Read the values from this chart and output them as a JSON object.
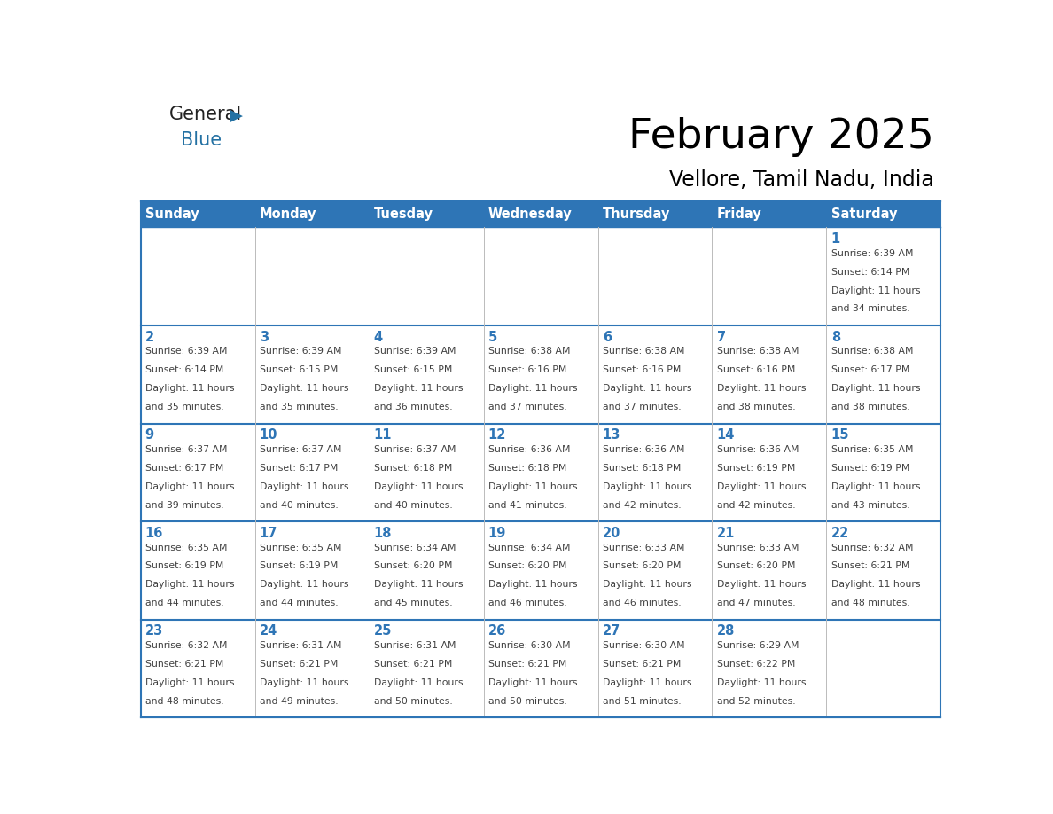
{
  "title": "February 2025",
  "subtitle": "Vellore, Tamil Nadu, India",
  "days_of_week": [
    "Sunday",
    "Monday",
    "Tuesday",
    "Wednesday",
    "Thursday",
    "Friday",
    "Saturday"
  ],
  "header_bg": "#2E75B6",
  "header_text": "#FFFFFF",
  "cell_bg": "#FFFFFF",
  "border_color": "#2E75B6",
  "row_border_color": "#2E75B6",
  "col_border_color": "#CCCCCC",
  "title_color": "#000000",
  "day_num_color": "#2E75B6",
  "info_color": "#404040",
  "calendar_data": [
    [
      null,
      null,
      null,
      null,
      null,
      null,
      {
        "day": 1,
        "sunrise": "6:39 AM",
        "sunset": "6:14 PM",
        "daylight_line1": "Daylight: 11 hours",
        "daylight_line2": "and 34 minutes."
      }
    ],
    [
      {
        "day": 2,
        "sunrise": "6:39 AM",
        "sunset": "6:14 PM",
        "daylight_line1": "Daylight: 11 hours",
        "daylight_line2": "and 35 minutes."
      },
      {
        "day": 3,
        "sunrise": "6:39 AM",
        "sunset": "6:15 PM",
        "daylight_line1": "Daylight: 11 hours",
        "daylight_line2": "and 35 minutes."
      },
      {
        "day": 4,
        "sunrise": "6:39 AM",
        "sunset": "6:15 PM",
        "daylight_line1": "Daylight: 11 hours",
        "daylight_line2": "and 36 minutes."
      },
      {
        "day": 5,
        "sunrise": "6:38 AM",
        "sunset": "6:16 PM",
        "daylight_line1": "Daylight: 11 hours",
        "daylight_line2": "and 37 minutes."
      },
      {
        "day": 6,
        "sunrise": "6:38 AM",
        "sunset": "6:16 PM",
        "daylight_line1": "Daylight: 11 hours",
        "daylight_line2": "and 37 minutes."
      },
      {
        "day": 7,
        "sunrise": "6:38 AM",
        "sunset": "6:16 PM",
        "daylight_line1": "Daylight: 11 hours",
        "daylight_line2": "and 38 minutes."
      },
      {
        "day": 8,
        "sunrise": "6:38 AM",
        "sunset": "6:17 PM",
        "daylight_line1": "Daylight: 11 hours",
        "daylight_line2": "and 38 minutes."
      }
    ],
    [
      {
        "day": 9,
        "sunrise": "6:37 AM",
        "sunset": "6:17 PM",
        "daylight_line1": "Daylight: 11 hours",
        "daylight_line2": "and 39 minutes."
      },
      {
        "day": 10,
        "sunrise": "6:37 AM",
        "sunset": "6:17 PM",
        "daylight_line1": "Daylight: 11 hours",
        "daylight_line2": "and 40 minutes."
      },
      {
        "day": 11,
        "sunrise": "6:37 AM",
        "sunset": "6:18 PM",
        "daylight_line1": "Daylight: 11 hours",
        "daylight_line2": "and 40 minutes."
      },
      {
        "day": 12,
        "sunrise": "6:36 AM",
        "sunset": "6:18 PM",
        "daylight_line1": "Daylight: 11 hours",
        "daylight_line2": "and 41 minutes."
      },
      {
        "day": 13,
        "sunrise": "6:36 AM",
        "sunset": "6:18 PM",
        "daylight_line1": "Daylight: 11 hours",
        "daylight_line2": "and 42 minutes."
      },
      {
        "day": 14,
        "sunrise": "6:36 AM",
        "sunset": "6:19 PM",
        "daylight_line1": "Daylight: 11 hours",
        "daylight_line2": "and 42 minutes."
      },
      {
        "day": 15,
        "sunrise": "6:35 AM",
        "sunset": "6:19 PM",
        "daylight_line1": "Daylight: 11 hours",
        "daylight_line2": "and 43 minutes."
      }
    ],
    [
      {
        "day": 16,
        "sunrise": "6:35 AM",
        "sunset": "6:19 PM",
        "daylight_line1": "Daylight: 11 hours",
        "daylight_line2": "and 44 minutes."
      },
      {
        "day": 17,
        "sunrise": "6:35 AM",
        "sunset": "6:19 PM",
        "daylight_line1": "Daylight: 11 hours",
        "daylight_line2": "and 44 minutes."
      },
      {
        "day": 18,
        "sunrise": "6:34 AM",
        "sunset": "6:20 PM",
        "daylight_line1": "Daylight: 11 hours",
        "daylight_line2": "and 45 minutes."
      },
      {
        "day": 19,
        "sunrise": "6:34 AM",
        "sunset": "6:20 PM",
        "daylight_line1": "Daylight: 11 hours",
        "daylight_line2": "and 46 minutes."
      },
      {
        "day": 20,
        "sunrise": "6:33 AM",
        "sunset": "6:20 PM",
        "daylight_line1": "Daylight: 11 hours",
        "daylight_line2": "and 46 minutes."
      },
      {
        "day": 21,
        "sunrise": "6:33 AM",
        "sunset": "6:20 PM",
        "daylight_line1": "Daylight: 11 hours",
        "daylight_line2": "and 47 minutes."
      },
      {
        "day": 22,
        "sunrise": "6:32 AM",
        "sunset": "6:21 PM",
        "daylight_line1": "Daylight: 11 hours",
        "daylight_line2": "and 48 minutes."
      }
    ],
    [
      {
        "day": 23,
        "sunrise": "6:32 AM",
        "sunset": "6:21 PM",
        "daylight_line1": "Daylight: 11 hours",
        "daylight_line2": "and 48 minutes."
      },
      {
        "day": 24,
        "sunrise": "6:31 AM",
        "sunset": "6:21 PM",
        "daylight_line1": "Daylight: 11 hours",
        "daylight_line2": "and 49 minutes."
      },
      {
        "day": 25,
        "sunrise": "6:31 AM",
        "sunset": "6:21 PM",
        "daylight_line1": "Daylight: 11 hours",
        "daylight_line2": "and 50 minutes."
      },
      {
        "day": 26,
        "sunrise": "6:30 AM",
        "sunset": "6:21 PM",
        "daylight_line1": "Daylight: 11 hours",
        "daylight_line2": "and 50 minutes."
      },
      {
        "day": 27,
        "sunrise": "6:30 AM",
        "sunset": "6:21 PM",
        "daylight_line1": "Daylight: 11 hours",
        "daylight_line2": "and 51 minutes."
      },
      {
        "day": 28,
        "sunrise": "6:29 AM",
        "sunset": "6:22 PM",
        "daylight_line1": "Daylight: 11 hours",
        "daylight_line2": "and 52 minutes."
      },
      null
    ]
  ]
}
